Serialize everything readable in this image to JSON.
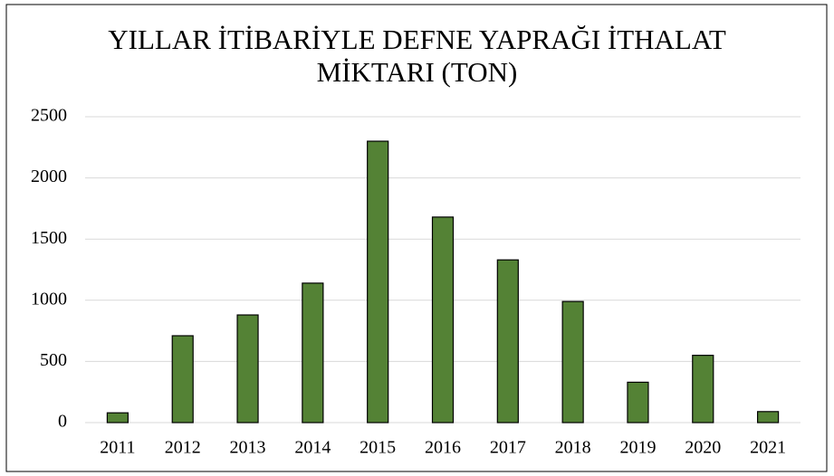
{
  "chart_data": {
    "type": "bar",
    "title": "YILLAR İTİBARİYLE DEFNE YAPRAĞI İTHALAT MİKTARI (TON)",
    "categories": [
      "2011",
      "2012",
      "2013",
      "2014",
      "2015",
      "2016",
      "2017",
      "2018",
      "2019",
      "2020",
      "2021"
    ],
    "values": [
      80,
      710,
      880,
      1140,
      2300,
      1680,
      1330,
      990,
      330,
      550,
      90
    ],
    "color": "#548235",
    "ylim": [
      0,
      2500
    ],
    "yticks": [
      0,
      500,
      1000,
      1500,
      2000,
      2500
    ],
    "grid": true
  }
}
